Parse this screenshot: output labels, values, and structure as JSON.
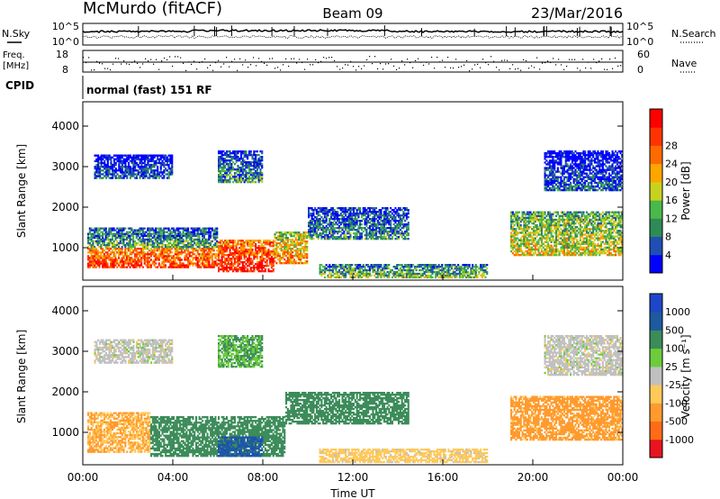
{
  "header": {
    "station": "McMurdo (fitACF)",
    "beam": "Beam 09",
    "date": "23/Mar/2016"
  },
  "top_panel": {
    "left_label": "N.Sky",
    "right_label": "N.Search",
    "left_ticks": [
      "10^5",
      "10^0"
    ],
    "right_ticks": [
      "10^5",
      "10^0"
    ]
  },
  "freq_panel": {
    "left_label_1": "Freq.",
    "left_label_2": "[MHz]",
    "right_label": "Nave",
    "left_ticks": [
      "18",
      "8"
    ],
    "right_ticks": [
      "60",
      "0"
    ]
  },
  "cpid": {
    "label": "CPID",
    "mode": "normal (fast) 151 RF"
  },
  "x_axis": {
    "label": "Time UT",
    "ticks": [
      "00:00",
      "04:00",
      "08:00",
      "12:00",
      "16:00",
      "20:00",
      "00:00"
    ]
  },
  "colors": {
    "power": [
      "#0000ff",
      "#1f4fb5",
      "#2e8b57",
      "#4ab84a",
      "#c8d21e",
      "#ffa500",
      "#ff6a00",
      "#ff3300",
      "#ff0000"
    ],
    "velocity": [
      "#e8141e",
      "#ff6b16",
      "#ff9a2e",
      "#ffc95a",
      "#c0c0c0",
      "#6ccc3c",
      "#3c8c5a",
      "#1e5aa0",
      "#1e46c8"
    ]
  },
  "chart_data": [
    {
      "type": "heatmap",
      "panel": "power",
      "ylabel": "Slant Range [km]",
      "yticks": [
        "1000",
        "2000",
        "3000",
        "4000"
      ],
      "ylim": [
        200,
        4600
      ],
      "xlim": [
        0,
        24
      ],
      "colorbar_label": "Power [dB]",
      "colorbar_ticks": [
        "4",
        "8",
        "12",
        "16",
        "20",
        "24",
        "28"
      ],
      "bands": [
        {
          "t0": 0.2,
          "t1": 6.0,
          "r0": 500,
          "r1": 1000,
          "value": 28
        },
        {
          "t0": 0.2,
          "t1": 6.0,
          "r0": 1000,
          "r1": 1500,
          "value": 12
        },
        {
          "t0": 6.0,
          "t1": 8.5,
          "r0": 400,
          "r1": 1200,
          "value": 30
        },
        {
          "t0": 8.5,
          "t1": 10.0,
          "r0": 600,
          "r1": 1400,
          "value": 22
        },
        {
          "t0": 10.0,
          "t1": 14.5,
          "r0": 1200,
          "r1": 2000,
          "value": 10
        },
        {
          "t0": 0.5,
          "t1": 4.0,
          "r0": 2700,
          "r1": 3300,
          "value": 6
        },
        {
          "t0": 6.0,
          "t1": 8.0,
          "r0": 2600,
          "r1": 3400,
          "value": 10
        },
        {
          "t0": 19.0,
          "t1": 24.0,
          "r0": 800,
          "r1": 1900,
          "value": 18
        },
        {
          "t0": 20.5,
          "t1": 24.0,
          "r0": 2400,
          "r1": 3400,
          "value": 6
        },
        {
          "t0": 10.5,
          "t1": 18.0,
          "r0": 250,
          "r1": 600,
          "value": 14
        }
      ]
    },
    {
      "type": "heatmap",
      "panel": "velocity",
      "ylabel": "Slant Range [km]",
      "yticks": [
        "1000",
        "2000",
        "3000",
        "4000"
      ],
      "ylim": [
        200,
        4600
      ],
      "xlim": [
        0,
        24
      ],
      "colorbar_label": "Velocity [m s⁻¹]",
      "colorbar_ticks": [
        "-1000",
        "-500",
        "-100",
        "-25",
        "25",
        "100",
        "500",
        "1000"
      ],
      "bands": [
        {
          "t0": 0.2,
          "t1": 3.0,
          "r0": 500,
          "r1": 1500,
          "value": -100
        },
        {
          "t0": 3.0,
          "t1": 9.0,
          "r0": 400,
          "r1": 1400,
          "value": 300
        },
        {
          "t0": 6.0,
          "t1": 8.0,
          "r0": 400,
          "r1": 900,
          "value": 800
        },
        {
          "t0": 9.0,
          "t1": 14.5,
          "r0": 1200,
          "r1": 2000,
          "value": 300
        },
        {
          "t0": 0.5,
          "t1": 4.0,
          "r0": 2700,
          "r1": 3300,
          "value": 0
        },
        {
          "t0": 6.0,
          "t1": 8.0,
          "r0": 2600,
          "r1": 3400,
          "value": 100
        },
        {
          "t0": 19.0,
          "t1": 24.0,
          "r0": 800,
          "r1": 1900,
          "value": -150
        },
        {
          "t0": 20.5,
          "t1": 24.0,
          "r0": 2400,
          "r1": 3400,
          "value": 0
        },
        {
          "t0": 10.5,
          "t1": 18.0,
          "r0": 250,
          "r1": 600,
          "value": -50
        }
      ]
    }
  ]
}
